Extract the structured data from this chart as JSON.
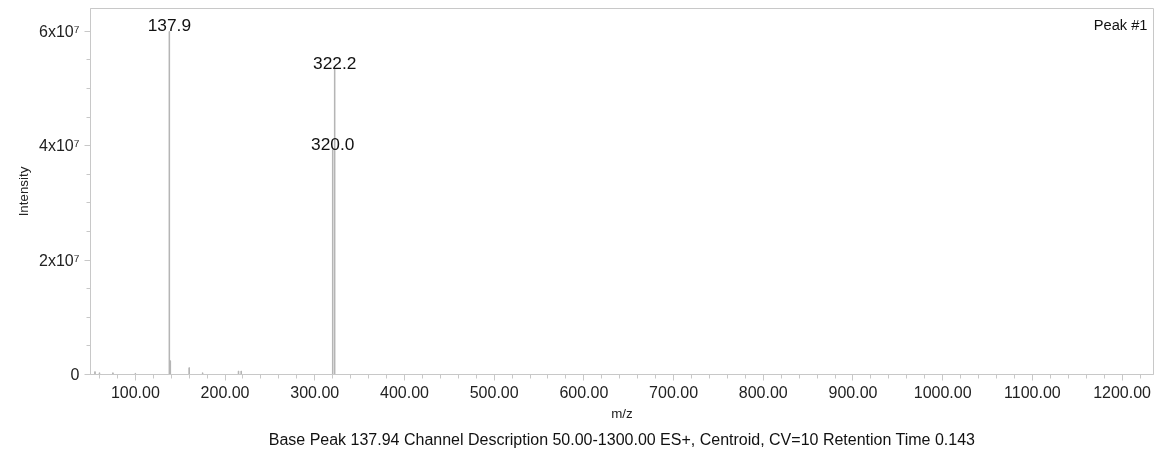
{
  "chart_data": {
    "type": "bar",
    "xlabel": "m/z",
    "ylabel": "Intensity",
    "annotations": [
      "Peak #1",
      "Base Peak 137.94 Channel Description 50.00-1300.00 ES+, Centroid, CV=10 Retention Time 0.143",
      {
        "text": "137.9",
        "x": 137.9,
        "y": 60000000
      },
      {
        "text": "322.2",
        "x": 322.2,
        "y": 53400000
      },
      {
        "text": "320.0",
        "x": 320.0,
        "y": 39300000
      }
    ],
    "series": [
      {
        "color": "#b4b4b4",
        "x": [
          55,
          60,
          75,
          100,
          137.9,
          139,
          160,
          175,
          215,
          218,
          320.0,
          322.2
        ],
        "values": [
          500000,
          300000,
          300000,
          200000,
          60000000,
          2400000,
          1200000,
          300000,
          600000,
          600000,
          39300000,
          53400000
        ]
      }
    ],
    "xlim": [
      50,
      1235
    ],
    "ylim": [
      0,
      64000000
    ],
    "xticks": [
      {
        "value": 60,
        "label": null
      },
      {
        "value": 80,
        "label": null
      },
      {
        "value": 100,
        "label": "100.00"
      },
      {
        "value": 120,
        "label": null
      },
      {
        "value": 140,
        "label": null
      },
      {
        "value": 160,
        "label": null
      },
      {
        "value": 180,
        "label": null
      },
      {
        "value": 200,
        "label": "200.00"
      },
      {
        "value": 220,
        "label": null
      },
      {
        "value": 240,
        "label": null
      },
      {
        "value": 260,
        "label": null
      },
      {
        "value": 280,
        "label": null
      },
      {
        "value": 300,
        "label": "300.00"
      },
      {
        "value": 320,
        "label": null
      },
      {
        "value": 340,
        "label": null
      },
      {
        "value": 360,
        "label": null
      },
      {
        "value": 380,
        "label": null
      },
      {
        "value": 400,
        "label": "400.00"
      },
      {
        "value": 420,
        "label": null
      },
      {
        "value": 440,
        "label": null
      },
      {
        "value": 460,
        "label": null
      },
      {
        "value": 480,
        "label": null
      },
      {
        "value": 500,
        "label": "500.00"
      },
      {
        "value": 520,
        "label": null
      },
      {
        "value": 540,
        "label": null
      },
      {
        "value": 560,
        "label": null
      },
      {
        "value": 580,
        "label": null
      },
      {
        "value": 600,
        "label": "600.00"
      },
      {
        "value": 620,
        "label": null
      },
      {
        "value": 640,
        "label": null
      },
      {
        "value": 660,
        "label": null
      },
      {
        "value": 680,
        "label": null
      },
      {
        "value": 700,
        "label": "700.00"
      },
      {
        "value": 720,
        "label": null
      },
      {
        "value": 740,
        "label": null
      },
      {
        "value": 760,
        "label": null
      },
      {
        "value": 780,
        "label": null
      },
      {
        "value": 800,
        "label": "800.00"
      },
      {
        "value": 820,
        "label": null
      },
      {
        "value": 840,
        "label": null
      },
      {
        "value": 860,
        "label": null
      },
      {
        "value": 880,
        "label": null
      },
      {
        "value": 900,
        "label": "900.00"
      },
      {
        "value": 920,
        "label": null
      },
      {
        "value": 940,
        "label": null
      },
      {
        "value": 960,
        "label": null
      },
      {
        "value": 980,
        "label": null
      },
      {
        "value": 1000,
        "label": "1000.00"
      },
      {
        "value": 1020,
        "label": null
      },
      {
        "value": 1040,
        "label": null
      },
      {
        "value": 1060,
        "label": null
      },
      {
        "value": 1080,
        "label": null
      },
      {
        "value": 1100,
        "label": "1100.00"
      },
      {
        "value": 1120,
        "label": null
      },
      {
        "value": 1140,
        "label": null
      },
      {
        "value": 1160,
        "label": null
      },
      {
        "value": 1180,
        "label": null
      },
      {
        "value": 1200,
        "label": "1200.00"
      },
      {
        "value": 1220,
        "label": null
      }
    ],
    "yticks": [
      0,
      {
        "value": 5000000,
        "label": null
      },
      {
        "value": 10000000,
        "label": null
      },
      {
        "value": 15000000,
        "label": null
      },
      {
        "value": 20000000,
        "label": "2x10⁷"
      },
      {
        "value": 25000000,
        "label": null
      },
      {
        "value": 30000000,
        "label": null
      },
      {
        "value": 35000000,
        "label": null
      },
      {
        "value": 40000000,
        "label": "4x10⁷"
      },
      {
        "value": 45000000,
        "label": null
      },
      {
        "value": 50000000,
        "label": null
      },
      {
        "value": 55000000,
        "label": null
      },
      {
        "value": 60000000,
        "label": "6x10⁷"
      }
    ],
    "grid": false
  }
}
